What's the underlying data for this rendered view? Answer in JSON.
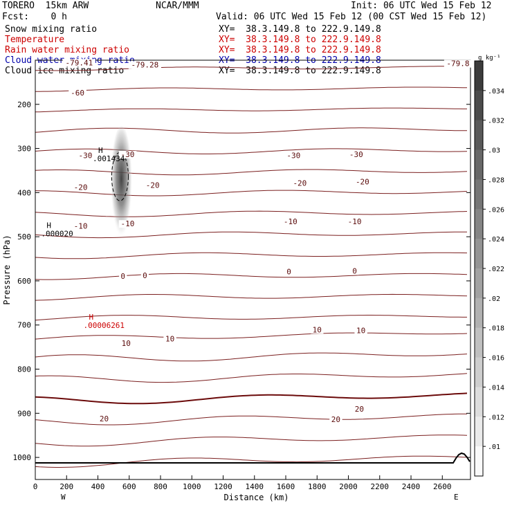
{
  "header": {
    "model": "TORERO  15km ARW",
    "org": "NCAR/MMM",
    "init": "Init: 06 UTC Wed 15 Feb 12",
    "fcst": "Fcst:    0 h",
    "valid": "Valid: 06 UTC Wed 15 Feb 12 (00 CST Wed 15 Feb 12)"
  },
  "fields": [
    {
      "name": "Snow mixing ratio",
      "xy": "XY=  38.3.149.8 to 222.9.149.8",
      "color": "#000000"
    },
    {
      "name": "Temperature",
      "xy": "XY=  38.3.149.8 to 222.9.149.8",
      "color": "#cc0000"
    },
    {
      "name": "Rain water mixing ratio",
      "xy": "XY=  38.3.149.8 to 222.9.149.8",
      "color": "#cc0000"
    },
    {
      "name": "Cloud water mixing ratio",
      "xy": "XY=  38.3.149.8 to 222.9.149.8",
      "color": "#0000aa"
    },
    {
      "name": "Cloud ice mixing ratio",
      "xy": "XY=  38.3.149.8 to 222.9.149.8",
      "color": "#000000"
    }
  ],
  "chart_data": {
    "type": "contour",
    "xlabel": "Distance (km)",
    "ylabel": "Pressure (hPa)",
    "xlim": [
      0,
      2780
    ],
    "ylim": [
      1050,
      100
    ],
    "x_ticks": [
      0,
      200,
      400,
      600,
      800,
      1000,
      1200,
      1400,
      1600,
      1800,
      2000,
      2200,
      2400,
      2600
    ],
    "y_ticks": [
      200,
      300,
      400,
      500,
      600,
      700,
      800,
      900,
      1000
    ],
    "x_end_labels": {
      "left": "W",
      "right": "E"
    },
    "temperature_labels": [
      {
        "text": "-79.41",
        "x": 280,
        "p": 110
      },
      {
        "text": "-79.28",
        "x": 700,
        "p": 115
      },
      {
        "text": "-79.8",
        "x": 2700,
        "p": 112
      },
      {
        "text": "-60",
        "x": 270,
        "p": 178
      },
      {
        "text": "-30",
        "x": 320,
        "p": 320
      },
      {
        "text": "-30",
        "x": 1650,
        "p": 320
      },
      {
        "text": "-30",
        "x": 2050,
        "p": 318
      },
      {
        "text": "-30",
        "x": 590,
        "p": 318
      },
      {
        "text": "-20",
        "x": 290,
        "p": 392
      },
      {
        "text": "-20",
        "x": 1690,
        "p": 383
      },
      {
        "text": "-20",
        "x": 2090,
        "p": 380
      },
      {
        "text": "-20",
        "x": 750,
        "p": 388
      },
      {
        "text": "-10",
        "x": 290,
        "p": 480
      },
      {
        "text": "-10",
        "x": 590,
        "p": 475
      },
      {
        "text": "-10",
        "x": 1630,
        "p": 470
      },
      {
        "text": "-10",
        "x": 2040,
        "p": 470
      },
      {
        "text": "0",
        "x": 560,
        "p": 594
      },
      {
        "text": "0",
        "x": 700,
        "p": 592
      },
      {
        "text": "0",
        "x": 1620,
        "p": 584
      },
      {
        "text": "0",
        "x": 2040,
        "p": 582
      },
      {
        "text": "10",
        "x": 580,
        "p": 746
      },
      {
        "text": "10",
        "x": 860,
        "p": 736
      },
      {
        "text": "10",
        "x": 1800,
        "p": 715
      },
      {
        "text": "10",
        "x": 2080,
        "p": 717
      },
      {
        "text": "20",
        "x": 440,
        "p": 917
      },
      {
        "text": "20",
        "x": 1920,
        "p": 918
      },
      {
        "text": "20",
        "x": 2070,
        "p": 895
      }
    ],
    "extrema": [
      {
        "mark": "H",
        "value": ".001434",
        "x": 420,
        "p": 310,
        "color": "#000000"
      },
      {
        "mark": "H",
        "value": ".000020",
        "x": 90,
        "p": 480,
        "color": "#000000"
      },
      {
        "mark": "H",
        "value": ".00006261",
        "x": 360,
        "p": 688,
        "color": "#cc0000"
      }
    ],
    "snow_plume": {
      "x": 550,
      "p_top": 265,
      "p_bottom": 500
    },
    "colorbar": {
      "unit": "g kg⁻¹",
      "labels": [
        ".034",
        ".032",
        ".03",
        ".028",
        ".026",
        ".024",
        ".022",
        ".02",
        ".018",
        ".016",
        ".014",
        ".012",
        ".01"
      ]
    }
  }
}
